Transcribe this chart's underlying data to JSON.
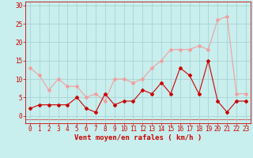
{
  "x": [
    0,
    1,
    2,
    3,
    4,
    5,
    6,
    7,
    8,
    9,
    10,
    11,
    12,
    13,
    14,
    15,
    16,
    17,
    18,
    19,
    20,
    21,
    22,
    23
  ],
  "wind_mean": [
    2,
    3,
    3,
    3,
    3,
    5,
    2,
    1,
    6,
    3,
    4,
    4,
    7,
    6,
    9,
    6,
    13,
    11,
    6,
    15,
    4,
    1,
    4,
    4
  ],
  "wind_gust": [
    13,
    11,
    7,
    10,
    8,
    8,
    5,
    6,
    4,
    10,
    10,
    9,
    10,
    13,
    15,
    18,
    18,
    18,
    19,
    18,
    26,
    27,
    6,
    6
  ],
  "mean_color": "#cc0000",
  "gust_color": "#f0a0a0",
  "bg_color": "#c8eeed",
  "grid_color": "#a8d4d4",
  "xlabel": "Vent moyen/en rafales ( km/h )",
  "yticks": [
    0,
    5,
    10,
    15,
    20,
    25,
    30
  ],
  "xticks": [
    0,
    1,
    2,
    3,
    4,
    5,
    6,
    7,
    8,
    9,
    10,
    11,
    12,
    13,
    14,
    15,
    16,
    17,
    18,
    19,
    20,
    21,
    22,
    23
  ],
  "ylim": [
    -2,
    31
  ],
  "xlim": [
    -0.5,
    23.5
  ],
  "tick_color": "#cc0000",
  "label_fontsize": 5.5,
  "xlabel_fontsize": 6.5
}
